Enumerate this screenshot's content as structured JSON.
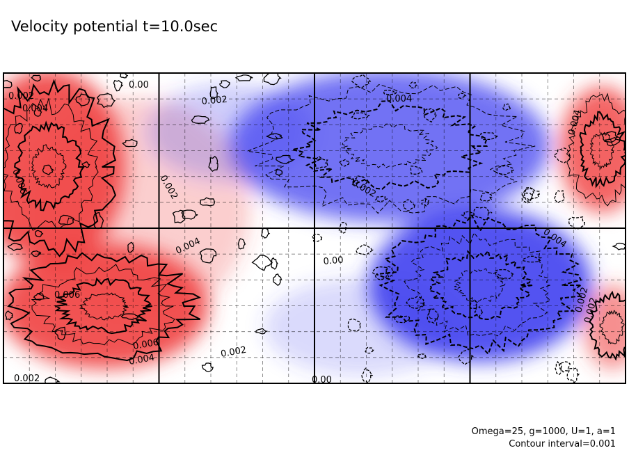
{
  "title": "Velocity potential t=10.0sec",
  "footer": {
    "params": "Omega=25, g=1000, U=1, a=1",
    "interval": "Contour interval=0.001"
  },
  "colors": {
    "positive_max": "#f04040",
    "negative_max": "#4040f0",
    "zero": "#ffffff",
    "frame": "#000000"
  },
  "chart_data": {
    "type": "heatmap",
    "title": "Velocity potential t=10.0sec",
    "xlabel": "",
    "ylabel": "",
    "contour_interval": 0.001,
    "grid": true,
    "value_range": [
      -0.007,
      0.007
    ],
    "grid_columns": 4,
    "grid_rows": 2,
    "contour_labels": [
      "0.002",
      "0.004",
      "0.006",
      "0.00",
      "0.002",
      "0.004",
      "0.002",
      "0.004",
      "0.004",
      "0.006",
      "0.006",
      "0.004",
      "0.002",
      "0.002",
      "0.00",
      "0.002",
      "0.00",
      "0.004",
      "0.002",
      "0.002"
    ],
    "features": [
      {
        "sign": "positive",
        "peak": 0.007,
        "region": "west lower"
      },
      {
        "sign": "positive",
        "peak": 0.007,
        "region": "west upper"
      },
      {
        "sign": "positive",
        "peak": 0.006,
        "region": "east upper"
      },
      {
        "sign": "negative",
        "peak": -0.007,
        "region": "east-center lower"
      },
      {
        "sign": "negative",
        "peak": -0.005,
        "region": "center upper"
      },
      {
        "sign": "positive",
        "peak": 0.003,
        "region": "east lower"
      }
    ]
  }
}
